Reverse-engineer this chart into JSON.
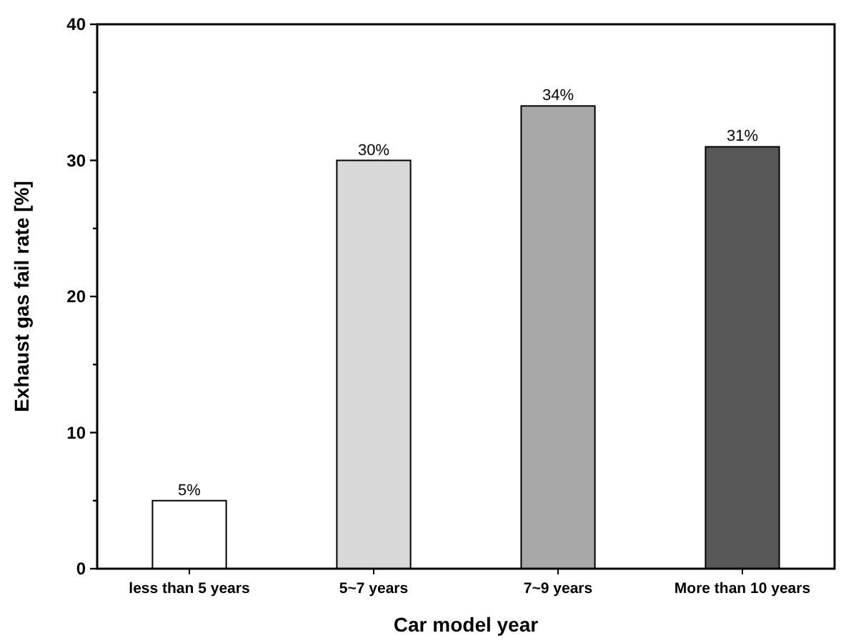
{
  "chart_data": {
    "type": "bar",
    "xlabel": "Car model year",
    "ylabel": "Exhaust gas fail rate [%]",
    "categories": [
      "less than 5 years",
      "5~7 years",
      "7~9 years",
      "More than 10 years"
    ],
    "values": [
      5,
      30,
      34,
      31
    ],
    "colors": [
      "#ffffff",
      "#d8d8d8",
      "#a8a8a8",
      "#585858"
    ],
    "value_labels": [
      "5%",
      "30%",
      "34%",
      "31%"
    ],
    "ylim": [
      0,
      40
    ],
    "yticks": [
      0,
      {
        "value": 5,
        "label": null
      },
      10,
      {
        "value": 15,
        "label": null
      },
      20,
      {
        "value": 25,
        "label": null
      },
      30,
      {
        "value": 35,
        "label": null
      },
      40
    ],
    "grid": false
  }
}
